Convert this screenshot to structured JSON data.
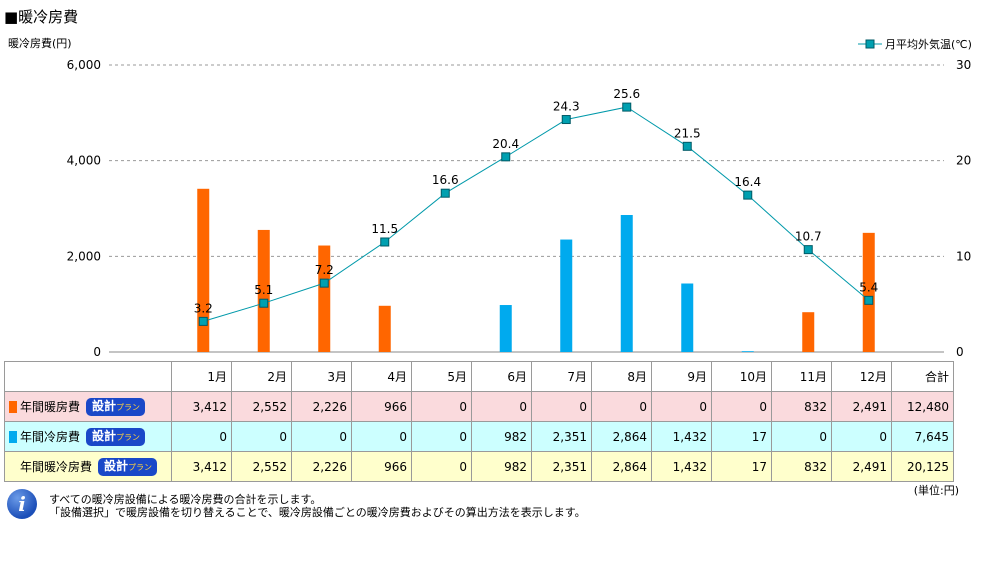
{
  "title": "■暖冷房費",
  "chart_data": {
    "type": "bar",
    "categories": [
      "1月",
      "2月",
      "3月",
      "4月",
      "5月",
      "6月",
      "7月",
      "8月",
      "9月",
      "10月",
      "11月",
      "12月"
    ],
    "series": [
      {
        "name": "年間暖房費",
        "type": "bar",
        "axis": "left",
        "color": "#ff6600",
        "values": [
          3412,
          2552,
          2226,
          966,
          0,
          0,
          0,
          0,
          0,
          0,
          832,
          2491
        ]
      },
      {
        "name": "年間冷房費",
        "type": "bar",
        "axis": "left",
        "color": "#00aaee",
        "values": [
          0,
          0,
          0,
          0,
          0,
          982,
          2351,
          2864,
          1432,
          17,
          0,
          0
        ]
      },
      {
        "name": "月平均外気温(℃)",
        "type": "line",
        "axis": "right",
        "color": "#0099aa",
        "values": [
          3.2,
          5.1,
          7.2,
          11.5,
          16.6,
          20.4,
          24.3,
          25.6,
          21.5,
          16.4,
          10.7,
          5.4
        ]
      }
    ],
    "ylabel": "暖冷房費(円)",
    "y2label": "月平均外気温(℃)",
    "ylim": [
      0,
      6000
    ],
    "y2lim": [
      0,
      30
    ],
    "yticks": [
      "0",
      "2,000",
      "4,000",
      "6,000"
    ],
    "y2ticks": [
      "0",
      "10",
      "20",
      "30"
    ],
    "legend": "top-right",
    "grid": true
  },
  "table": {
    "headers": [
      "1月",
      "2月",
      "3月",
      "4月",
      "5月",
      "6月",
      "7月",
      "8月",
      "9月",
      "10月",
      "11月",
      "12月",
      "合計"
    ],
    "rows": [
      {
        "label": "年間暖房費",
        "marker": "#ff6600",
        "cells": [
          "3,412",
          "2,552",
          "2,226",
          "966",
          "0",
          "0",
          "0",
          "0",
          "0",
          "0",
          "832",
          "2,491",
          "12,480"
        ]
      },
      {
        "label": "年間冷房費",
        "marker": "#00aaee",
        "cells": [
          "0",
          "0",
          "0",
          "0",
          "0",
          "982",
          "2,351",
          "2,864",
          "1,432",
          "17",
          "0",
          "0",
          "7,645"
        ]
      },
      {
        "label": "年間暖冷房費",
        "marker": "",
        "cells": [
          "3,412",
          "2,552",
          "2,226",
          "966",
          "0",
          "982",
          "2,351",
          "2,864",
          "1,432",
          "17",
          "832",
          "2,491",
          "20,125"
        ]
      }
    ],
    "button_main": "設計",
    "button_sub": "プラン"
  },
  "unit": "(単位:円)",
  "notes": [
    "すべての暖冷房設備による暖冷房費の合計を示します。",
    "「設備選択」で暖房設備を切り替えることで、暖冷房設備ごとの暖冷房費およびその算出方法を表示します。"
  ],
  "info_icon": "i"
}
